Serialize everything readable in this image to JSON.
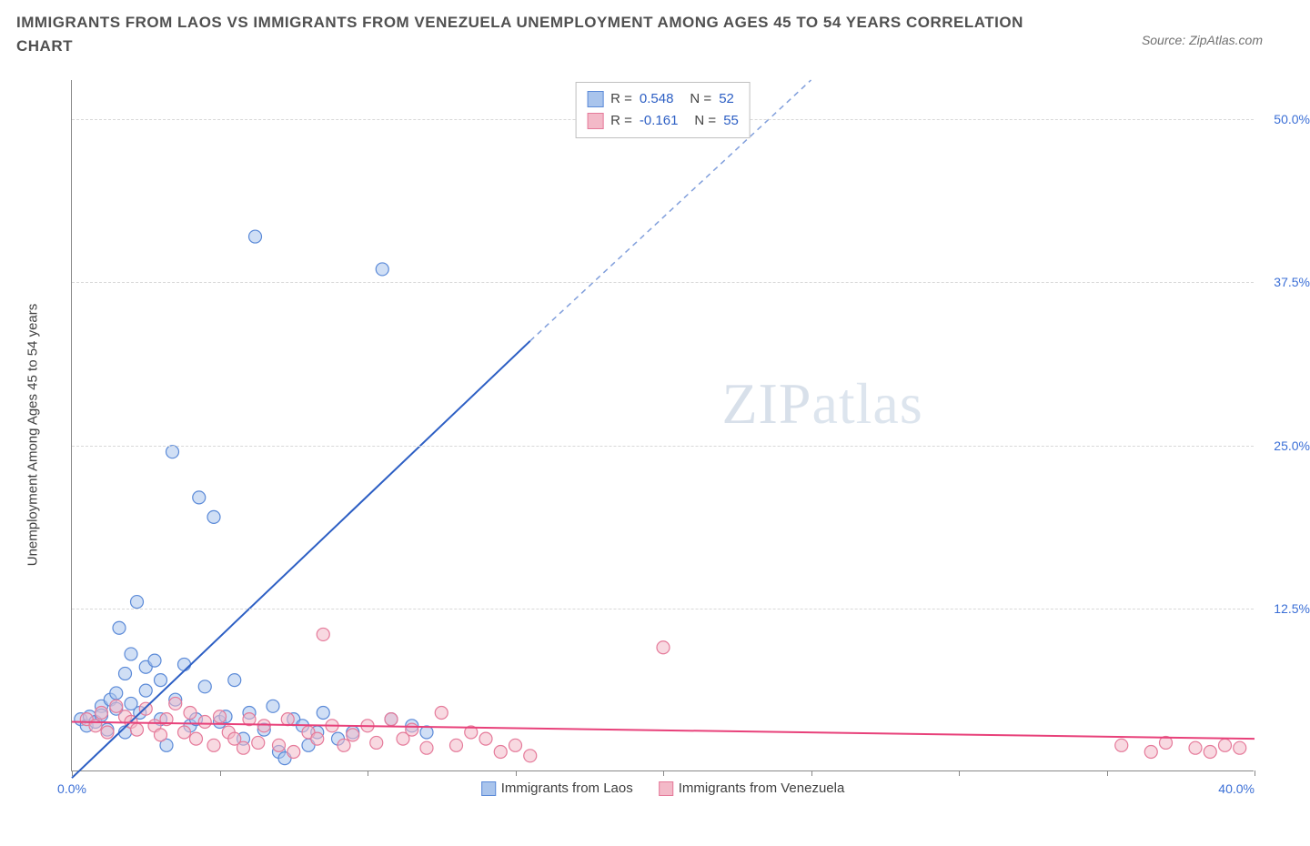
{
  "title": "IMMIGRANTS FROM LAOS VS IMMIGRANTS FROM VENEZUELA UNEMPLOYMENT AMONG AGES 45 TO 54 YEARS CORRELATION CHART",
  "source": "Source: ZipAtlas.com",
  "watermark_a": "ZIP",
  "watermark_b": "atlas",
  "chart": {
    "type": "scatter",
    "ylabel": "Unemployment Among Ages 45 to 54 years",
    "xlim": [
      0,
      40
    ],
    "ylim": [
      0,
      53
    ],
    "xtick_positions": [
      0,
      5,
      10,
      15,
      20,
      25,
      30,
      35,
      40
    ],
    "xtick_labels_shown": {
      "0": "0.0%",
      "40": "40.0%"
    },
    "ytick_positions": [
      12.5,
      25.0,
      37.5,
      50.0
    ],
    "ytick_labels": [
      "12.5%",
      "25.0%",
      "37.5%",
      "50.0%"
    ],
    "grid_positions": [
      12.5,
      25.0,
      37.5,
      50.0
    ],
    "background_color": "#ffffff",
    "grid_color": "#d8d8d8",
    "axis_color": "#888888",
    "marker_radius": 7,
    "marker_opacity": 0.55,
    "line_width": 2,
    "series": [
      {
        "name": "Immigrants from Laos",
        "color_fill": "#a9c4ec",
        "color_stroke": "#5b8ad8",
        "line_color": "#2d5fc4",
        "R": "0.548",
        "N": "52",
        "trend": {
          "x1": 0,
          "y1": -0.5,
          "x2_solid": 15.5,
          "y2_solid": 33,
          "x2_dash": 25,
          "y2_dash": 53
        },
        "points": [
          [
            0.3,
            4.0
          ],
          [
            0.5,
            3.5
          ],
          [
            0.6,
            4.2
          ],
          [
            0.8,
            3.8
          ],
          [
            1.0,
            5.0
          ],
          [
            1.0,
            4.3
          ],
          [
            1.2,
            3.2
          ],
          [
            1.3,
            5.5
          ],
          [
            1.5,
            6.0
          ],
          [
            1.5,
            4.8
          ],
          [
            1.6,
            11.0
          ],
          [
            1.8,
            7.5
          ],
          [
            1.8,
            3.0
          ],
          [
            2.0,
            9.0
          ],
          [
            2.0,
            5.2
          ],
          [
            2.2,
            13.0
          ],
          [
            2.3,
            4.5
          ],
          [
            2.5,
            8.0
          ],
          [
            2.5,
            6.2
          ],
          [
            2.8,
            8.5
          ],
          [
            3.0,
            4.0
          ],
          [
            3.0,
            7.0
          ],
          [
            3.2,
            2.0
          ],
          [
            3.4,
            24.5
          ],
          [
            3.5,
            5.5
          ],
          [
            3.8,
            8.2
          ],
          [
            4.0,
            3.5
          ],
          [
            4.2,
            4.0
          ],
          [
            4.3,
            21.0
          ],
          [
            4.5,
            6.5
          ],
          [
            4.8,
            19.5
          ],
          [
            5.0,
            3.8
          ],
          [
            5.2,
            4.2
          ],
          [
            5.5,
            7.0
          ],
          [
            5.8,
            2.5
          ],
          [
            6.0,
            4.5
          ],
          [
            6.2,
            41.0
          ],
          [
            6.5,
            3.2
          ],
          [
            6.8,
            5.0
          ],
          [
            7.0,
            1.5
          ],
          [
            7.2,
            1.0
          ],
          [
            7.5,
            4.0
          ],
          [
            7.8,
            3.5
          ],
          [
            8.0,
            2.0
          ],
          [
            8.3,
            3.0
          ],
          [
            8.5,
            4.5
          ],
          [
            9.0,
            2.5
          ],
          [
            9.5,
            3.0
          ],
          [
            10.5,
            38.5
          ],
          [
            10.8,
            4.0
          ],
          [
            11.5,
            3.5
          ],
          [
            12.0,
            3.0
          ]
        ]
      },
      {
        "name": "Immigrants from Venezuela",
        "color_fill": "#f3b9c8",
        "color_stroke": "#e57a9a",
        "line_color": "#e8417a",
        "R": "-0.161",
        "N": "55",
        "trend": {
          "x1": 0,
          "y1": 3.8,
          "x2_solid": 40,
          "y2_solid": 2.5,
          "x2_dash": 40,
          "y2_dash": 2.5
        },
        "points": [
          [
            0.5,
            4.0
          ],
          [
            0.8,
            3.5
          ],
          [
            1.0,
            4.5
          ],
          [
            1.2,
            3.0
          ],
          [
            1.5,
            5.0
          ],
          [
            1.8,
            4.2
          ],
          [
            2.0,
            3.8
          ],
          [
            2.2,
            3.2
          ],
          [
            2.5,
            4.8
          ],
          [
            2.8,
            3.5
          ],
          [
            3.0,
            2.8
          ],
          [
            3.2,
            4.0
          ],
          [
            3.5,
            5.2
          ],
          [
            3.8,
            3.0
          ],
          [
            4.0,
            4.5
          ],
          [
            4.2,
            2.5
          ],
          [
            4.5,
            3.8
          ],
          [
            4.8,
            2.0
          ],
          [
            5.0,
            4.2
          ],
          [
            5.3,
            3.0
          ],
          [
            5.5,
            2.5
          ],
          [
            5.8,
            1.8
          ],
          [
            6.0,
            4.0
          ],
          [
            6.3,
            2.2
          ],
          [
            6.5,
            3.5
          ],
          [
            7.0,
            2.0
          ],
          [
            7.3,
            4.0
          ],
          [
            7.5,
            1.5
          ],
          [
            8.0,
            3.0
          ],
          [
            8.3,
            2.5
          ],
          [
            8.5,
            10.5
          ],
          [
            8.8,
            3.5
          ],
          [
            9.2,
            2.0
          ],
          [
            9.5,
            2.8
          ],
          [
            10.0,
            3.5
          ],
          [
            10.3,
            2.2
          ],
          [
            10.8,
            4.0
          ],
          [
            11.2,
            2.5
          ],
          [
            11.5,
            3.2
          ],
          [
            12.0,
            1.8
          ],
          [
            12.5,
            4.5
          ],
          [
            13.0,
            2.0
          ],
          [
            13.5,
            3.0
          ],
          [
            14.0,
            2.5
          ],
          [
            14.5,
            1.5
          ],
          [
            15.0,
            2.0
          ],
          [
            15.5,
            1.2
          ],
          [
            20.0,
            9.5
          ],
          [
            35.5,
            2.0
          ],
          [
            36.5,
            1.5
          ],
          [
            37.0,
            2.2
          ],
          [
            38.0,
            1.8
          ],
          [
            38.5,
            1.5
          ],
          [
            39.0,
            2.0
          ],
          [
            39.5,
            1.8
          ]
        ]
      }
    ],
    "legend_labels": [
      "Immigrants from Laos",
      "Immigrants from Venezuela"
    ]
  }
}
